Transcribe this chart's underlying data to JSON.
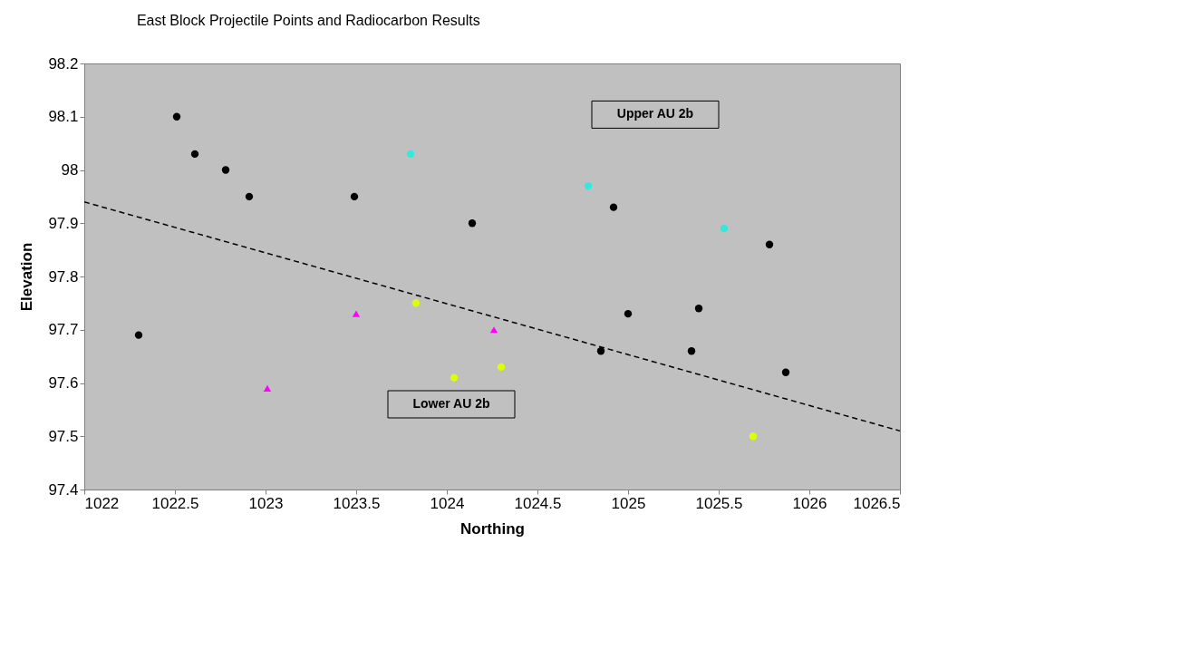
{
  "chart_data": {
    "type": "scatter",
    "title": "East Block Projectile Points and Radiocarbon Results",
    "xlabel": "Northing",
    "ylabel": "Elevation",
    "xlim": [
      1022,
      1026.5
    ],
    "xticks": [
      1022,
      1022.5,
      1023,
      1023.5,
      1024,
      1024.5,
      1025,
      1025.5,
      1026,
      1026.5
    ],
    "ylim": [
      97.4,
      98.2
    ],
    "yticks": [
      97.4,
      97.5,
      97.6,
      97.7,
      97.8,
      97.9,
      98,
      98.1,
      98.2
    ],
    "grid": false,
    "series": [
      {
        "type": "line",
        "line_style": "dashed",
        "marker": "none",
        "color": "#000000",
        "x": [
          1022,
          1026.5
        ],
        "values": [
          97.94,
          97.51
        ]
      },
      {
        "marker": "circle",
        "color": "#000000",
        "x": [
          1022.51,
          1022.61,
          1022.78,
          1022.91,
          1023.49,
          1024.14,
          1022.3,
          1024.92,
          1025.78,
          1025.0,
          1025.39,
          1024.85,
          1025.35,
          1025.87
        ],
        "values": [
          98.1,
          98.03,
          98.0,
          97.95,
          97.95,
          97.9,
          97.69,
          97.93,
          97.86,
          97.73,
          97.74,
          97.66,
          97.66,
          97.62
        ]
      },
      {
        "marker": "circle",
        "color": "#33e8dc",
        "x": [
          1023.8,
          1024.78,
          1025.53
        ],
        "values": [
          98.03,
          97.97,
          97.89
        ]
      },
      {
        "marker": "triangle",
        "color": "#ff00ff",
        "x": [
          1023.01,
          1023.5,
          1024.26
        ],
        "values": [
          97.59,
          97.73,
          97.7
        ]
      },
      {
        "marker": "circle",
        "color": "#ddff00",
        "x": [
          1023.83,
          1024.04,
          1024.3,
          1025.69
        ],
        "values": [
          97.75,
          97.61,
          97.63,
          97.5
        ]
      }
    ],
    "annotations": [
      "Upper AU 2b",
      "Lower AU 2b"
    ]
  }
}
